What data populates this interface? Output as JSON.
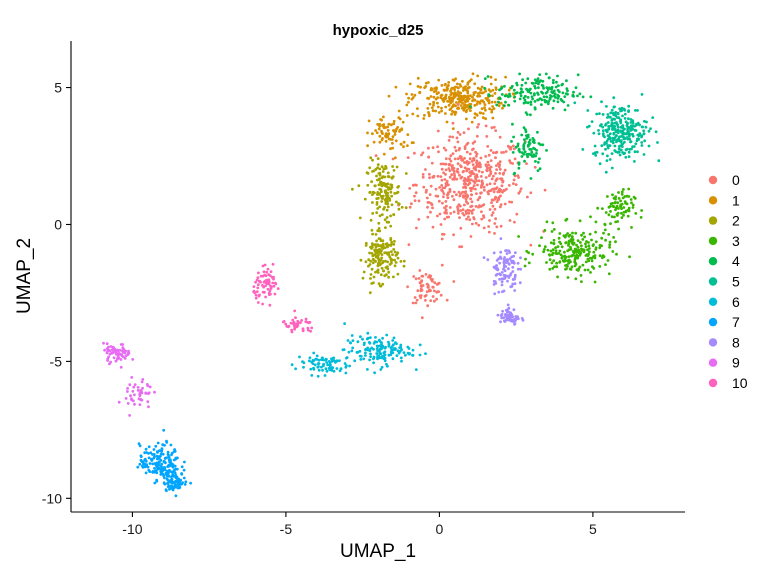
{
  "chart_data": {
    "type": "scatter",
    "title": "hypoxic_d25",
    "xlabel": "UMAP_1",
    "ylabel": "UMAP_2",
    "xlim": [
      -12,
      8
    ],
    "ylim": [
      -10.5,
      6.7
    ],
    "x_ticks": [
      -10,
      -5,
      0,
      5
    ],
    "y_ticks": [
      -10,
      -5,
      0,
      5
    ],
    "grid": false,
    "legend_position": "right",
    "series": [
      {
        "name": "0",
        "color": "#F8766D",
        "n": 560,
        "regions": [
          {
            "cx": 1.0,
            "cy": 1.5,
            "sx": 1.6,
            "sy": 1.6,
            "w": 0.88
          },
          {
            "cx": -0.4,
            "cy": -2.3,
            "sx": 0.5,
            "sy": 0.5,
            "w": 0.12
          }
        ]
      },
      {
        "name": "1",
        "color": "#D89000",
        "n": 380,
        "regions": [
          {
            "cx": 0.6,
            "cy": 4.6,
            "sx": 1.4,
            "sy": 0.7,
            "w": 0.8
          },
          {
            "cx": -1.6,
            "cy": 3.3,
            "sx": 0.6,
            "sy": 0.6,
            "w": 0.2
          }
        ]
      },
      {
        "name": "2",
        "color": "#A3A500",
        "n": 300,
        "regions": [
          {
            "cx": -1.8,
            "cy": 1.2,
            "sx": 0.5,
            "sy": 1.0,
            "w": 0.5
          },
          {
            "cx": -1.9,
            "cy": -1.2,
            "sx": 0.5,
            "sy": 0.8,
            "w": 0.5
          }
        ]
      },
      {
        "name": "3",
        "color": "#39B600",
        "n": 300,
        "regions": [
          {
            "cx": 4.4,
            "cy": -1.0,
            "sx": 1.1,
            "sy": 0.8,
            "w": 0.75
          },
          {
            "cx": 5.8,
            "cy": 0.6,
            "sx": 0.5,
            "sy": 0.6,
            "w": 0.25
          }
        ]
      },
      {
        "name": "4",
        "color": "#00BB4E",
        "n": 240,
        "regions": [
          {
            "cx": 3.2,
            "cy": 4.8,
            "sx": 1.2,
            "sy": 0.6,
            "w": 0.7
          },
          {
            "cx": 2.9,
            "cy": 2.8,
            "sx": 0.5,
            "sy": 0.8,
            "w": 0.3
          }
        ]
      },
      {
        "name": "5",
        "color": "#00BF95",
        "n": 270,
        "regions": [
          {
            "cx": 5.9,
            "cy": 3.4,
            "sx": 0.8,
            "sy": 0.9,
            "w": 1.0
          }
        ]
      },
      {
        "name": "6",
        "color": "#00BCD8",
        "n": 220,
        "regions": [
          {
            "cx": -2.0,
            "cy": -4.6,
            "sx": 1.0,
            "sy": 0.5,
            "w": 0.65
          },
          {
            "cx": -3.8,
            "cy": -5.1,
            "sx": 0.8,
            "sy": 0.35,
            "w": 0.35
          }
        ]
      },
      {
        "name": "7",
        "color": "#00A5FF",
        "n": 240,
        "regions": [
          {
            "cx": -9.1,
            "cy": -8.7,
            "sx": 0.6,
            "sy": 0.6,
            "w": 0.7
          },
          {
            "cx": -8.6,
            "cy": -9.4,
            "sx": 0.35,
            "sy": 0.3,
            "w": 0.3
          }
        ]
      },
      {
        "name": "8",
        "color": "#A58AFF",
        "n": 150,
        "regions": [
          {
            "cx": 2.1,
            "cy": -1.6,
            "sx": 0.4,
            "sy": 0.8,
            "w": 0.65
          },
          {
            "cx": 2.3,
            "cy": -3.4,
            "sx": 0.3,
            "sy": 0.3,
            "w": 0.35
          }
        ]
      },
      {
        "name": "9",
        "color": "#E76BF3",
        "n": 110,
        "regions": [
          {
            "cx": -10.5,
            "cy": -4.7,
            "sx": 0.4,
            "sy": 0.3,
            "w": 0.6
          },
          {
            "cx": -9.8,
            "cy": -6.2,
            "sx": 0.4,
            "sy": 0.6,
            "w": 0.4
          }
        ]
      },
      {
        "name": "10",
        "color": "#FF62BC",
        "n": 110,
        "regions": [
          {
            "cx": -5.6,
            "cy": -2.2,
            "sx": 0.4,
            "sy": 0.5,
            "w": 0.65
          },
          {
            "cx": -4.6,
            "cy": -3.7,
            "sx": 0.5,
            "sy": 0.3,
            "w": 0.35
          }
        ]
      }
    ]
  }
}
